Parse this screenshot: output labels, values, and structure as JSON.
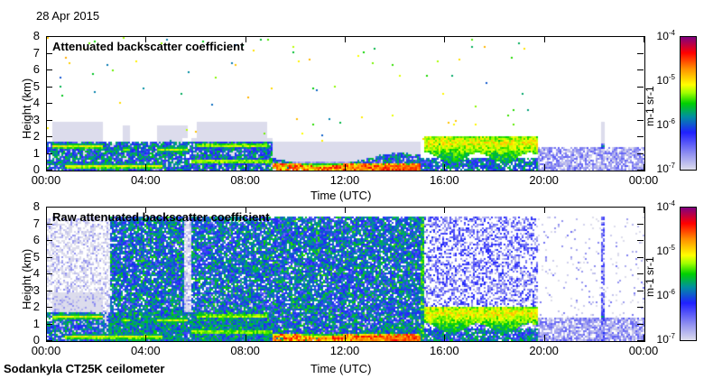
{
  "date": "28 Apr 2015",
  "footer": "Sodankyla CT25K ceilometer",
  "chart_data": [
    {
      "type": "heatmap",
      "title": "Attenuated backscatter coefficient",
      "xlabel": "Time (UTC)",
      "ylabel": "Height (km)",
      "xlim": [
        0,
        24
      ],
      "ylim": [
        0,
        8
      ],
      "x_ticks": [
        "00:00",
        "04:00",
        "08:00",
        "12:00",
        "16:00",
        "20:00",
        "00:00"
      ],
      "y_ticks": [
        "0",
        "1",
        "2",
        "3",
        "4",
        "5",
        "6",
        "7",
        "8"
      ],
      "colorbar": {
        "label": "m-1 sr-1",
        "scale": "log",
        "range": [
          1e-07,
          0.0001
        ],
        "ticks": [
          "10^-7",
          "10^-6",
          "10^-5",
          "10^-4"
        ]
      },
      "raw": false
    },
    {
      "type": "heatmap",
      "title": "Raw attenuated backscatter coefficient",
      "xlabel": "Time (UTC)",
      "ylabel": "Height (km)",
      "xlim": [
        0,
        24
      ],
      "ylim": [
        0,
        8
      ],
      "x_ticks": [
        "00:00",
        "04:00",
        "08:00",
        "12:00",
        "16:00",
        "20:00",
        "00:00"
      ],
      "y_ticks": [
        "0",
        "1",
        "2",
        "3",
        "4",
        "5",
        "6",
        "7",
        "8"
      ],
      "colorbar": {
        "label": "m-1 sr-1",
        "scale": "log",
        "range": [
          1e-07,
          0.0001
        ],
        "ticks": [
          "10^-7",
          "10^-6",
          "10^-5",
          "10^-4"
        ]
      },
      "raw": true
    }
  ],
  "features": {
    "cloud_layers_km": [
      {
        "t0": 0.2,
        "t1": 2.2,
        "h": 1.5,
        "log": -4.9
      },
      {
        "t0": 3.0,
        "t1": 3.3,
        "h": 1.3,
        "log": -5.0
      },
      {
        "t0": 4.4,
        "t1": 5.6,
        "h": 1.3,
        "log": -5.0
      },
      {
        "t0": 6.0,
        "t1": 8.8,
        "h": 1.55,
        "log": -5.0
      },
      {
        "t0": 0.7,
        "t1": 4.6,
        "h": 0.3,
        "log": -4.9
      },
      {
        "t0": 5.8,
        "t1": 9.0,
        "h": 0.6,
        "log": -5.0
      },
      {
        "t0": 9.0,
        "t1": 15.0,
        "h": 0.35,
        "log": -5.0
      },
      {
        "t0": 15.1,
        "t1": 19.7,
        "h": 1.7,
        "log": -4.8
      },
      {
        "t0": 22.2,
        "t1": 22.4,
        "h": 1.5,
        "log": -5.6
      }
    ]
  }
}
